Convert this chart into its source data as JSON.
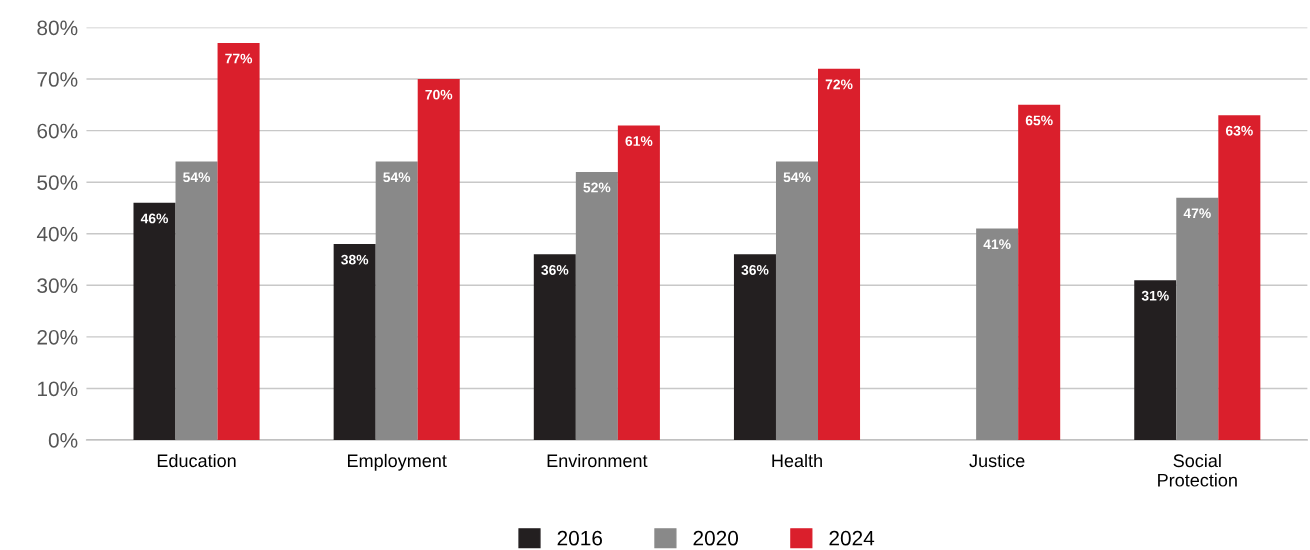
{
  "chart_data": {
    "type": "bar",
    "categories": [
      "Education",
      "Employment",
      "Environment",
      "Health",
      "Justice",
      "Social\nProtection"
    ],
    "series": [
      {
        "name": "2016",
        "color": "#231f20",
        "values": [
          46,
          38,
          36,
          36,
          null,
          31
        ],
        "value_labels": [
          "46%",
          "38%",
          "36%",
          "36%",
          null,
          "31%"
        ]
      },
      {
        "name": "2020",
        "color": "#898989",
        "values": [
          54,
          54,
          52,
          54,
          41,
          47
        ],
        "value_labels": [
          "54%",
          "54%",
          "52%",
          "54%",
          "41%",
          "47%"
        ]
      },
      {
        "name": "2024",
        "color": "#da1f2c",
        "values": [
          77,
          70,
          61,
          72,
          65,
          63
        ],
        "value_labels": [
          "77%",
          "70%",
          "61%",
          "72%",
          "65%",
          "63%"
        ]
      }
    ],
    "ylim": [
      0,
      80
    ],
    "yticks": [
      {
        "value": 0,
        "label": "0%"
      },
      {
        "value": 10,
        "label": "10%"
      },
      {
        "value": 20,
        "label": "20%"
      },
      {
        "value": 30,
        "label": "30%"
      },
      {
        "value": 40,
        "label": "40%"
      },
      {
        "value": 50,
        "label": "50%"
      },
      {
        "value": 60,
        "label": "60%"
      },
      {
        "value": 70,
        "label": "70%"
      },
      {
        "value": 80,
        "label": "80%"
      }
    ],
    "grid": "y",
    "legend": "bottom"
  }
}
